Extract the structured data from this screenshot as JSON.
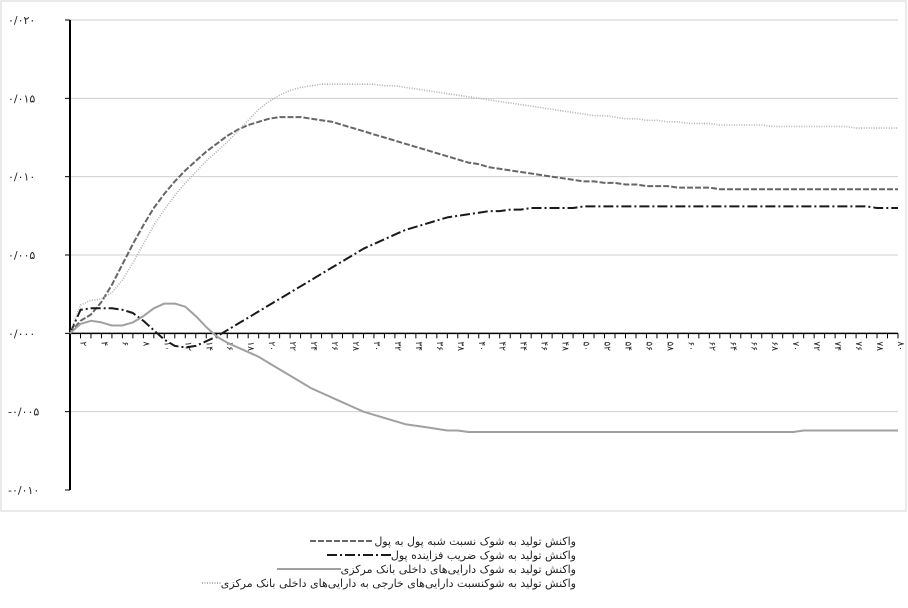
{
  "chart_data": {
    "type": "line",
    "title": "",
    "xlabel": "",
    "ylabel": "",
    "x": [
      1,
      2,
      3,
      4,
      5,
      6,
      7,
      8,
      9,
      10,
      11,
      12,
      13,
      14,
      15,
      16,
      17,
      18,
      19,
      20,
      21,
      22,
      23,
      24,
      25,
      26,
      27,
      28,
      29,
      30,
      31,
      32,
      33,
      34,
      35,
      36,
      37,
      38,
      39,
      40,
      41,
      42,
      43,
      44,
      45,
      46,
      47,
      48,
      49,
      50,
      51,
      52,
      53,
      54,
      55,
      56,
      57,
      58,
      59,
      60,
      61,
      62,
      63,
      64,
      65,
      66,
      67,
      68,
      69,
      70,
      71,
      72,
      73,
      74,
      75,
      76,
      77,
      78,
      79,
      80
    ],
    "xtick_labels": [
      "۲",
      "۴",
      "۶",
      "۸",
      "۱۰",
      "۱۲",
      "۱۴",
      "۱۶",
      "۱۸",
      "۲۰",
      "۲۲",
      "۲۴",
      "۲۶",
      "۲۸",
      "۳۰",
      "۳۲",
      "۳۴",
      "۳۶",
      "۳۸",
      "۴۰",
      "۴۲",
      "۴۴",
      "۴۶",
      "۴۸",
      "۵۰",
      "۵۲",
      "۵۴",
      "۵۶",
      "۵۸",
      "۶۰",
      "۶۲",
      "۶۴",
      "۶۶",
      "۶۸",
      "۷۰",
      "۷۲",
      "۷۴",
      "۷۶",
      "۷۸",
      "۸۰"
    ],
    "ylim": [
      -0.01,
      0.02
    ],
    "yticks": [
      -0.01,
      -0.005,
      0.0,
      0.005,
      0.01,
      0.015,
      0.02
    ],
    "ytick_labels": [
      "-۰/۰۱۰",
      "-۰/۰۰۵",
      "۰/۰۰۰",
      "۰/۰۰۵",
      "۰/۰۱۰",
      "۰/۰۱۵",
      "۰/۰۲۰"
    ],
    "grid": "horizontal",
    "legend_position": "bottom",
    "series": [
      {
        "name": "واکنش تولید به شوک نسبت شبه پول به پول",
        "color": "#666666",
        "dash": "dashed",
        "values": [
          0.0,
          0.0008,
          0.0012,
          0.002,
          0.0031,
          0.0044,
          0.0057,
          0.0069,
          0.008,
          0.0089,
          0.0097,
          0.0104,
          0.011,
          0.0116,
          0.0121,
          0.0126,
          0.013,
          0.0133,
          0.0135,
          0.0137,
          0.0138,
          0.0138,
          0.0138,
          0.0137,
          0.0136,
          0.0135,
          0.0133,
          0.0131,
          0.0129,
          0.0127,
          0.0125,
          0.0123,
          0.0121,
          0.0119,
          0.0117,
          0.0115,
          0.0113,
          0.0111,
          0.0109,
          0.0108,
          0.0106,
          0.0105,
          0.0104,
          0.0103,
          0.0102,
          0.0101,
          0.01,
          0.0099,
          0.0098,
          0.0097,
          0.0097,
          0.0096,
          0.0096,
          0.0095,
          0.0095,
          0.0094,
          0.0094,
          0.0094,
          0.0093,
          0.0093,
          0.0093,
          0.0093,
          0.0092,
          0.0092,
          0.0092,
          0.0092,
          0.0092,
          0.0092,
          0.0092,
          0.0092,
          0.0092,
          0.0092,
          0.0092,
          0.0092,
          0.0092,
          0.0092,
          0.0092,
          0.0092,
          0.0092,
          0.0092
        ]
      },
      {
        "name": "واکنش تولید به شوک ضریب فزاینده پول",
        "color": "#1a1a1a",
        "dash": "dashdot",
        "values": [
          0.0,
          0.0015,
          0.0016,
          0.0016,
          0.0016,
          0.0015,
          0.0013,
          0.0008,
          0.0002,
          -0.0004,
          -0.0008,
          -0.0009,
          -0.0008,
          -0.0005,
          -0.0002,
          0.0002,
          0.0006,
          0.001,
          0.0014,
          0.0018,
          0.0022,
          0.0026,
          0.003,
          0.0034,
          0.0038,
          0.0042,
          0.0046,
          0.005,
          0.0054,
          0.0057,
          0.006,
          0.0063,
          0.0066,
          0.0068,
          0.007,
          0.0072,
          0.0074,
          0.0075,
          0.0076,
          0.0077,
          0.0078,
          0.0078,
          0.0079,
          0.0079,
          0.008,
          0.008,
          0.008,
          0.008,
          0.008,
          0.0081,
          0.0081,
          0.0081,
          0.0081,
          0.0081,
          0.0081,
          0.0081,
          0.0081,
          0.0081,
          0.0081,
          0.0081,
          0.0081,
          0.0081,
          0.0081,
          0.0081,
          0.0081,
          0.0081,
          0.0081,
          0.0081,
          0.0081,
          0.0081,
          0.0081,
          0.0081,
          0.0081,
          0.0081,
          0.0081,
          0.0081,
          0.0081,
          0.008,
          0.008,
          0.008
        ]
      },
      {
        "name": "واکنش تولید به شوک دارایی‌های داخلی بانک مرکزی",
        "color": "#a0a0a0",
        "dash": "solid",
        "values": [
          0.0,
          0.0006,
          0.0008,
          0.0007,
          0.0005,
          0.0005,
          0.0007,
          0.0011,
          0.0016,
          0.0019,
          0.0019,
          0.0017,
          0.0011,
          0.0004,
          -0.0002,
          -0.0006,
          -0.0009,
          -0.0012,
          -0.0015,
          -0.0019,
          -0.0023,
          -0.0027,
          -0.0031,
          -0.0035,
          -0.0038,
          -0.0041,
          -0.0044,
          -0.0047,
          -0.005,
          -0.0052,
          -0.0054,
          -0.0056,
          -0.0058,
          -0.0059,
          -0.006,
          -0.0061,
          -0.0062,
          -0.0062,
          -0.0063,
          -0.0063,
          -0.0063,
          -0.0063,
          -0.0063,
          -0.0063,
          -0.0063,
          -0.0063,
          -0.0063,
          -0.0063,
          -0.0063,
          -0.0063,
          -0.0063,
          -0.0063,
          -0.0063,
          -0.0063,
          -0.0063,
          -0.0063,
          -0.0063,
          -0.0063,
          -0.0063,
          -0.0063,
          -0.0063,
          -0.0063,
          -0.0063,
          -0.0063,
          -0.0063,
          -0.0063,
          -0.0063,
          -0.0063,
          -0.0063,
          -0.0063,
          -0.0062,
          -0.0062,
          -0.0062,
          -0.0062,
          -0.0062,
          -0.0062,
          -0.0062,
          -0.0062,
          -0.0062,
          -0.0062
        ]
      },
      {
        "name": "واکنش تولید به شوکنسبت دارایی‌های خارجی به دارایی‌های داخلی بانک مرکزی",
        "color": "#b0b0b0",
        "dash": "dotted",
        "values": [
          0.0,
          0.0018,
          0.0021,
          0.0022,
          0.0026,
          0.0034,
          0.0045,
          0.0057,
          0.0069,
          0.0079,
          0.0088,
          0.0096,
          0.0103,
          0.011,
          0.0116,
          0.0122,
          0.0129,
          0.0136,
          0.0143,
          0.0148,
          0.0152,
          0.0155,
          0.0157,
          0.0158,
          0.0159,
          0.0159,
          0.0159,
          0.0159,
          0.0159,
          0.0159,
          0.0158,
          0.0158,
          0.0157,
          0.0156,
          0.0155,
          0.0154,
          0.0153,
          0.0152,
          0.0151,
          0.015,
          0.0149,
          0.0148,
          0.0147,
          0.0146,
          0.0145,
          0.0144,
          0.0143,
          0.0142,
          0.0141,
          0.014,
          0.0139,
          0.0139,
          0.0138,
          0.0137,
          0.0137,
          0.0136,
          0.0136,
          0.0135,
          0.0135,
          0.0134,
          0.0134,
          0.0134,
          0.0133,
          0.0133,
          0.0133,
          0.0133,
          0.0133,
          0.0132,
          0.0132,
          0.0132,
          0.0132,
          0.0132,
          0.0132,
          0.0132,
          0.0132,
          0.0131,
          0.0131,
          0.0131,
          0.0131,
          0.0131
        ]
      }
    ]
  }
}
